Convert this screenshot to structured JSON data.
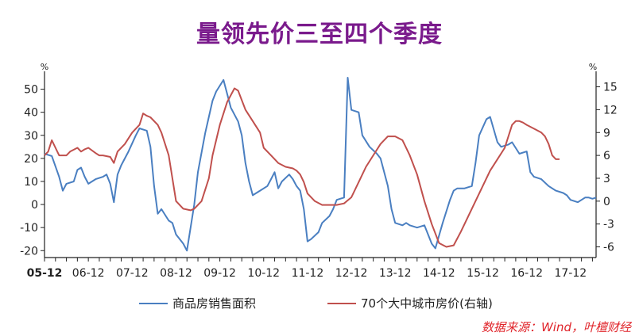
{
  "title": "量领先价三至四个季度",
  "source": "数据来源：Wind，叶檀财经",
  "colors": {
    "title": "#7a1a8c",
    "sales": "#4a7fc1",
    "price": "#c0504d",
    "source": "#e0242a",
    "axis": "#222222"
  },
  "chart_data": {
    "type": "line",
    "title": "量领先价三至四个季度",
    "left_axis": {
      "unit": "%",
      "ylim": [
        -23,
        55
      ],
      "ticks": [
        -20,
        -10,
        0,
        10,
        20,
        30,
        40,
        50
      ]
    },
    "right_axis": {
      "unit": "%",
      "ylim": [
        -7.4,
        16.2
      ],
      "ticks": [
        -6,
        -3,
        0,
        3,
        6,
        9,
        12,
        15
      ]
    },
    "x_axis": {
      "start": "2005-12",
      "end": "2018-07",
      "labels": [
        "05-12",
        "06-12",
        "07-12",
        "08-12",
        "09-12",
        "10-12",
        "11-12",
        "12-12",
        "13-12",
        "14-12",
        "15-12",
        "16-12",
        "17-12"
      ]
    },
    "series": [
      {
        "name": "商品房销售面积",
        "axis": "left",
        "points": [
          [
            "2005-12",
            22
          ],
          [
            "2006-02",
            21
          ],
          [
            "2006-04",
            12
          ],
          [
            "2006-05",
            6
          ],
          [
            "2006-06",
            9
          ],
          [
            "2006-08",
            10
          ],
          [
            "2006-09",
            15
          ],
          [
            "2006-10",
            16
          ],
          [
            "2006-11",
            12
          ],
          [
            "2006-12",
            9
          ],
          [
            "2007-02",
            11
          ],
          [
            "2007-04",
            12
          ],
          [
            "2007-05",
            13
          ],
          [
            "2007-06",
            9
          ],
          [
            "2007-07",
            1
          ],
          [
            "2007-08",
            13
          ],
          [
            "2007-09",
            17
          ],
          [
            "2007-11",
            23
          ],
          [
            "2008-01",
            30
          ],
          [
            "2008-02",
            33
          ],
          [
            "2008-04",
            32
          ],
          [
            "2008-05",
            25
          ],
          [
            "2008-06",
            8
          ],
          [
            "2008-07",
            -4
          ],
          [
            "2008-08",
            -2
          ],
          [
            "2008-10",
            -7
          ],
          [
            "2008-11",
            -8
          ],
          [
            "2008-12",
            -13
          ],
          [
            "2009-01",
            -15
          ],
          [
            "2009-02",
            -17
          ],
          [
            "2009-03",
            -20
          ],
          [
            "2009-05",
            0
          ],
          [
            "2009-06",
            14
          ],
          [
            "2009-08",
            31
          ],
          [
            "2009-09",
            38
          ],
          [
            "2009-10",
            45
          ],
          [
            "2009-11",
            49
          ],
          [
            "2010-01",
            54
          ],
          [
            "2010-03",
            42
          ],
          [
            "2010-05",
            36
          ],
          [
            "2010-06",
            30
          ],
          [
            "2010-07",
            18
          ],
          [
            "2010-08",
            10
          ],
          [
            "2010-09",
            4
          ],
          [
            "2010-11",
            6
          ],
          [
            "2011-01",
            8
          ],
          [
            "2011-02",
            11
          ],
          [
            "2011-03",
            14
          ],
          [
            "2011-04",
            7
          ],
          [
            "2011-05",
            10
          ],
          [
            "2011-07",
            13
          ],
          [
            "2011-08",
            11
          ],
          [
            "2011-09",
            8
          ],
          [
            "2011-10",
            6
          ],
          [
            "2011-11",
            -2
          ],
          [
            "2011-12",
            -16
          ],
          [
            "2012-01",
            -15
          ],
          [
            "2012-03",
            -12
          ],
          [
            "2012-04",
            -8
          ],
          [
            "2012-06",
            -5
          ],
          [
            "2012-07",
            -2
          ],
          [
            "2012-08",
            2
          ],
          [
            "2012-10",
            3
          ],
          [
            "2012-11",
            55
          ],
          [
            "2012-12",
            41
          ],
          [
            "2013-02",
            40
          ],
          [
            "2013-03",
            30
          ],
          [
            "2013-05",
            25
          ],
          [
            "2013-07",
            22
          ],
          [
            "2013-08",
            20
          ],
          [
            "2013-10",
            8
          ],
          [
            "2013-11",
            -2
          ],
          [
            "2013-12",
            -8
          ],
          [
            "2014-02",
            -9
          ],
          [
            "2014-03",
            -8
          ],
          [
            "2014-04",
            -9
          ],
          [
            "2014-06",
            -10
          ],
          [
            "2014-08",
            -9
          ],
          [
            "2014-10",
            -17
          ],
          [
            "2014-11",
            -19
          ],
          [
            "2015-01",
            -8
          ],
          [
            "2015-03",
            2
          ],
          [
            "2015-04",
            6
          ],
          [
            "2015-05",
            7
          ],
          [
            "2015-07",
            7
          ],
          [
            "2015-09",
            8
          ],
          [
            "2015-10",
            18
          ],
          [
            "2015-11",
            30
          ],
          [
            "2016-01",
            37
          ],
          [
            "2016-02",
            38
          ],
          [
            "2016-04",
            27
          ],
          [
            "2016-05",
            25
          ],
          [
            "2016-07",
            26
          ],
          [
            "2016-08",
            27
          ],
          [
            "2016-10",
            22
          ],
          [
            "2016-12",
            23
          ],
          [
            "2017-01",
            14
          ],
          [
            "2017-02",
            12
          ],
          [
            "2017-04",
            11
          ],
          [
            "2017-06",
            8
          ],
          [
            "2017-08",
            6
          ],
          [
            "2017-10",
            5
          ],
          [
            "2017-11",
            4
          ],
          [
            "2017-12",
            2
          ],
          [
            "2018-02",
            1
          ],
          [
            "2018-04",
            3
          ],
          [
            "2018-05",
            3
          ],
          [
            "2018-06",
            2.5
          ],
          [
            "2018-07",
            3
          ]
        ]
      },
      {
        "name": "70个大中城市房价(右轴)",
        "axis": "right",
        "points": [
          [
            "2005-12",
            6
          ],
          [
            "2006-01",
            6.5
          ],
          [
            "2006-02",
            8
          ],
          [
            "2006-03",
            7
          ],
          [
            "2006-04",
            6
          ],
          [
            "2006-06",
            6
          ],
          [
            "2006-07",
            6.5
          ],
          [
            "2006-09",
            7
          ],
          [
            "2006-10",
            6.5
          ],
          [
            "2006-11",
            6.8
          ],
          [
            "2006-12",
            7
          ],
          [
            "2007-02",
            6.3
          ],
          [
            "2007-03",
            6
          ],
          [
            "2007-04",
            6
          ],
          [
            "2007-06",
            5.8
          ],
          [
            "2007-07",
            5
          ],
          [
            "2007-08",
            6.5
          ],
          [
            "2007-10",
            7.5
          ],
          [
            "2007-12",
            9
          ],
          [
            "2008-02",
            10
          ],
          [
            "2008-03",
            11.5
          ],
          [
            "2008-04",
            11.2
          ],
          [
            "2008-05",
            11
          ],
          [
            "2008-07",
            10
          ],
          [
            "2008-08",
            9
          ],
          [
            "2008-10",
            6
          ],
          [
            "2008-11",
            3
          ],
          [
            "2008-12",
            0
          ],
          [
            "2009-02",
            -1
          ],
          [
            "2009-04",
            -1.2
          ],
          [
            "2009-05",
            -1
          ],
          [
            "2009-07",
            0
          ],
          [
            "2009-09",
            3
          ],
          [
            "2009-10",
            6
          ],
          [
            "2009-11",
            8
          ],
          [
            "2009-12",
            10
          ],
          [
            "2010-02",
            13
          ],
          [
            "2010-04",
            14.8
          ],
          [
            "2010-05",
            14.5
          ],
          [
            "2010-07",
            12
          ],
          [
            "2010-09",
            10.5
          ],
          [
            "2010-11",
            9
          ],
          [
            "2010-12",
            7
          ],
          [
            "2011-02",
            6
          ],
          [
            "2011-04",
            5
          ],
          [
            "2011-06",
            4.5
          ],
          [
            "2011-08",
            4.3
          ],
          [
            "2011-09",
            4
          ],
          [
            "2011-10",
            3.5
          ],
          [
            "2011-11",
            2.5
          ],
          [
            "2011-12",
            1
          ],
          [
            "2012-02",
            0
          ],
          [
            "2012-04",
            -0.5
          ],
          [
            "2012-06",
            -0.5
          ],
          [
            "2012-08",
            -0.5
          ],
          [
            "2012-10",
            -0.3
          ],
          [
            "2012-12",
            0.5
          ],
          [
            "2013-02",
            2.5
          ],
          [
            "2013-04",
            4.5
          ],
          [
            "2013-06",
            6
          ],
          [
            "2013-08",
            7.5
          ],
          [
            "2013-10",
            8.5
          ],
          [
            "2013-12",
            8.5
          ],
          [
            "2014-02",
            8
          ],
          [
            "2014-04",
            6
          ],
          [
            "2014-06",
            3.5
          ],
          [
            "2014-08",
            0
          ],
          [
            "2014-10",
            -3
          ],
          [
            "2014-12",
            -5.5
          ],
          [
            "2015-02",
            -6
          ],
          [
            "2015-04",
            -5.8
          ],
          [
            "2015-06",
            -4
          ],
          [
            "2015-08",
            -2
          ],
          [
            "2015-10",
            0
          ],
          [
            "2015-12",
            2
          ],
          [
            "2016-02",
            4
          ],
          [
            "2016-04",
            5.5
          ],
          [
            "2016-06",
            7
          ],
          [
            "2016-08",
            10
          ],
          [
            "2016-09",
            10.5
          ],
          [
            "2016-10",
            10.5
          ],
          [
            "2016-11",
            10.3
          ],
          [
            "2016-12",
            10
          ],
          [
            "2017-02",
            9.5
          ],
          [
            "2017-04",
            9
          ],
          [
            "2017-05",
            8.5
          ],
          [
            "2017-06",
            7.5
          ],
          [
            "2017-07",
            6
          ],
          [
            "2017-08",
            5.5
          ],
          [
            "2017-09",
            5.5
          ]
        ]
      }
    ]
  }
}
